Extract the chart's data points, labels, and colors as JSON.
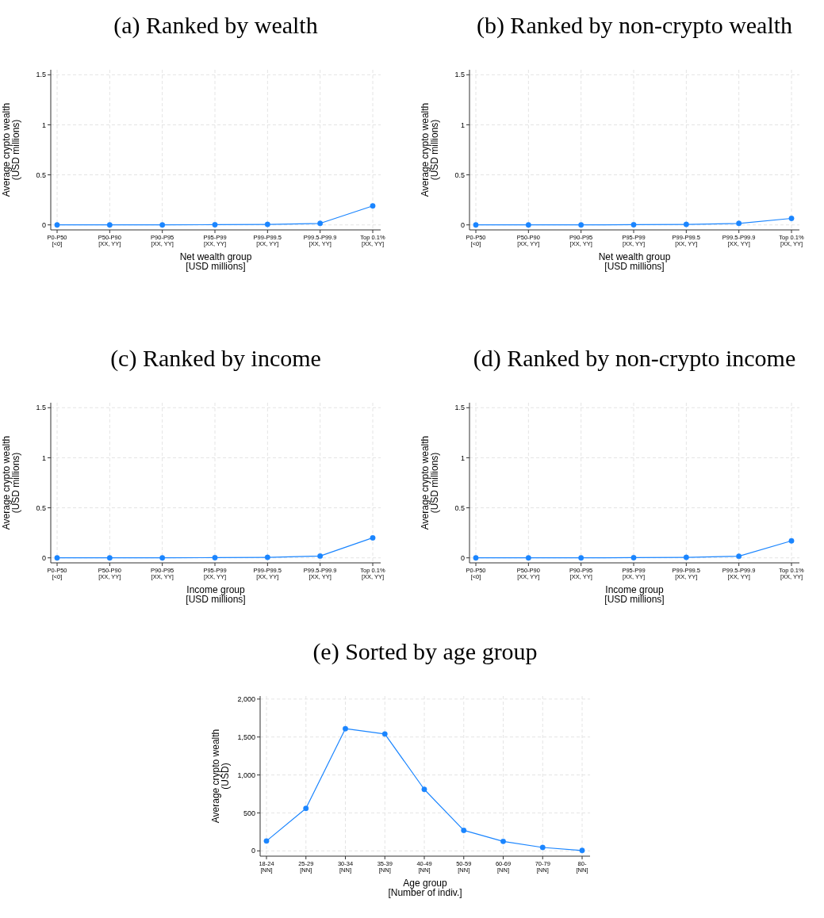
{
  "chart_data": [
    {
      "type": "line",
      "title": "(a) Ranked by wealth",
      "xlabel": "Net wealth group\n[USD millions]",
      "ylabel": "Average crypto wealth\n(USD millions)",
      "categories": [
        "P0-P50\n[<0]",
        "P50-P90\n[XX, YY]",
        "P90-P95\n[XX, YY]",
        "P95-P99\n[XX, YY]",
        "P99-P99.5\n[XX, YY]",
        "P99.5-P99.9\n[XX, YY]",
        "Top 0.1%\n[XX, YY]"
      ],
      "series": [
        {
          "color": "#1a85ff",
          "values": [
            0,
            0,
            0,
            0.002,
            0.005,
            0.015,
            0.19
          ]
        }
      ],
      "ylim": [
        -0.05,
        1.55
      ],
      "yticks": [
        0,
        0.5,
        1.0,
        1.5
      ],
      "grid": true,
      "marker": "circle"
    },
    {
      "type": "line",
      "title": "(b) Ranked by non-crypto wealth",
      "xlabel": "Net wealth group\n[USD millions]",
      "ylabel": "Average crypto wealth\n(USD millions)",
      "categories": [
        "P0-P50\n[<0]",
        "P50-P90\n[XX, YY]",
        "P90-P95\n[XX, YY]",
        "P95-P99\n[XX, YY]",
        "P99-P99.5\n[XX, YY]",
        "P99.5-P99.9\n[XX, YY]",
        "Top 0.1%\n[XX, YY]"
      ],
      "series": [
        {
          "color": "#1a85ff",
          "values": [
            0,
            0,
            0,
            0.002,
            0.005,
            0.015,
            0.065
          ]
        }
      ],
      "ylim": [
        -0.05,
        1.55
      ],
      "yticks": [
        0,
        0.5,
        1.0,
        1.5
      ],
      "grid": true,
      "marker": "circle"
    },
    {
      "type": "line",
      "title": "(c) Ranked by income",
      "xlabel": "Income group\n[USD millions]",
      "ylabel": "Average crypto wealth\n(USD millions)",
      "categories": [
        "P0-P50\n[<0]",
        "P50-P90\n[XX, YY]",
        "P90-P95\n[XX, YY]",
        "P95-P99\n[XX, YY]",
        "P99-P99.5\n[XX, YY]",
        "P99.5-P99.9\n[XX, YY]",
        "Top 0.1%\n[XX, YY]"
      ],
      "series": [
        {
          "color": "#1a85ff",
          "values": [
            0,
            0,
            0,
            0.002,
            0.005,
            0.018,
            0.2
          ]
        }
      ],
      "ylim": [
        -0.05,
        1.55
      ],
      "yticks": [
        0,
        0.5,
        1.0,
        1.5
      ],
      "grid": true,
      "marker": "circle"
    },
    {
      "type": "line",
      "title": "(d) Ranked by non-crypto income",
      "xlabel": "Income group\n[USD millions]",
      "ylabel": "Average crypto wealth\n(USD millions)",
      "categories": [
        "P0-P50\n[<0]",
        "P50-P90\n[XX, YY]",
        "P90-P95\n[XX, YY]",
        "P95-P99\n[XX, YY]",
        "P99-P99.5\n[XX, YY]",
        "P99.5-P99.9\n[XX, YY]",
        "Top 0.1%\n[XX, YY]"
      ],
      "series": [
        {
          "color": "#1a85ff",
          "values": [
            0,
            0,
            0,
            0.002,
            0.005,
            0.016,
            0.17
          ]
        }
      ],
      "ylim": [
        -0.05,
        1.55
      ],
      "yticks": [
        0,
        0.5,
        1.0,
        1.5
      ],
      "grid": true,
      "marker": "circle"
    },
    {
      "type": "line",
      "title": "(e) Sorted by age group",
      "xlabel": "Age group\n[Number of indiv.]",
      "ylabel": "Average crypto wealth\n(USD)",
      "categories": [
        "18-24\n[NN]",
        "25-29\n[NN]",
        "30-34\n[NN]",
        "35-39\n[NN]",
        "40-49\n[NN]",
        "50-59\n[NN]",
        "60-69\n[NN]",
        "70-79\n[NN]",
        "80-\n[NN]"
      ],
      "series": [
        {
          "color": "#1a85ff",
          "values": [
            130,
            560,
            1610,
            1540,
            810,
            270,
            125,
            45,
            5
          ]
        }
      ],
      "ylim": [
        -70,
        2040
      ],
      "yticks": [
        0,
        {
          "value": 500,
          "label": "500"
        },
        {
          "value": 1000,
          "label": "1,000"
        },
        {
          "value": 1500,
          "label": "1,500"
        },
        {
          "value": 2000,
          "label": "2,000"
        }
      ],
      "grid": true,
      "marker": "circle"
    }
  ]
}
